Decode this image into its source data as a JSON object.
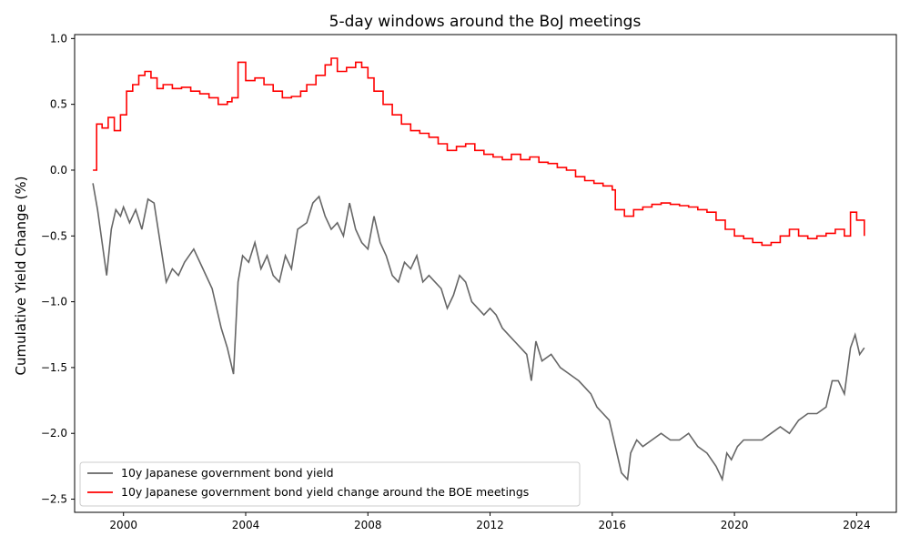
{
  "chart_data": {
    "type": "line",
    "title": "5-day windows around the BoJ meetings",
    "xlabel": "",
    "ylabel": "Cumulative Yield Change (%)",
    "xlim": [
      1998.4,
      2025.3
    ],
    "ylim": [
      -2.6,
      1.03
    ],
    "x_ticks": [
      2000,
      2004,
      2008,
      2012,
      2016,
      2020,
      2024
    ],
    "y_ticks": [
      1.0,
      0.5,
      0.0,
      -0.5,
      -1.0,
      -1.5,
      -2.0,
      -2.5
    ],
    "y_tick_labels": [
      "1.0",
      "0.5",
      "0.0",
      "−0.5",
      "−1.0",
      "−1.5",
      "−2.0",
      "−2.5"
    ],
    "grid": false,
    "legend_position": "lower-left",
    "series": [
      {
        "name": "10y Japanese government bond yield",
        "color": "#666666",
        "style": "line",
        "x": [
          1999.0,
          1999.15,
          1999.3,
          1999.45,
          1999.6,
          1999.75,
          1999.9,
          2000.0,
          2000.2,
          2000.4,
          2000.6,
          2000.8,
          2001.0,
          2001.2,
          2001.4,
          2001.6,
          2001.8,
          2002.0,
          2002.3,
          2002.6,
          2002.9,
          2003.2,
          2003.4,
          2003.6,
          2003.75,
          2003.9,
          2004.1,
          2004.3,
          2004.5,
          2004.7,
          2004.9,
          2005.1,
          2005.3,
          2005.5,
          2005.7,
          2006.0,
          2006.2,
          2006.4,
          2006.6,
          2006.8,
          2007.0,
          2007.2,
          2007.4,
          2007.6,
          2007.8,
          2008.0,
          2008.2,
          2008.4,
          2008.6,
          2008.8,
          2009.0,
          2009.2,
          2009.4,
          2009.6,
          2009.8,
          2010.0,
          2010.2,
          2010.4,
          2010.6,
          2010.8,
          2011.0,
          2011.2,
          2011.4,
          2011.6,
          2011.8,
          2012.0,
          2012.2,
          2012.4,
          2012.6,
          2012.8,
          2013.0,
          2013.2,
          2013.35,
          2013.5,
          2013.7,
          2014.0,
          2014.3,
          2014.6,
          2014.9,
          2015.1,
          2015.3,
          2015.5,
          2015.7,
          2015.9,
          2016.1,
          2016.3,
          2016.5,
          2016.6,
          2016.8,
          2017.0,
          2017.3,
          2017.6,
          2017.9,
          2018.2,
          2018.5,
          2018.8,
          2019.1,
          2019.4,
          2019.6,
          2019.75,
          2019.9,
          2020.1,
          2020.3,
          2020.6,
          2020.9,
          2021.2,
          2021.5,
          2021.8,
          2022.1,
          2022.4,
          2022.7,
          2023.0,
          2023.2,
          2023.4,
          2023.6,
          2023.8,
          2023.95,
          2024.1,
          2024.25
        ],
        "y": [
          -0.1,
          -0.3,
          -0.55,
          -0.8,
          -0.45,
          -0.3,
          -0.35,
          -0.28,
          -0.4,
          -0.3,
          -0.45,
          -0.22,
          -0.25,
          -0.55,
          -0.85,
          -0.75,
          -0.8,
          -0.7,
          -0.6,
          -0.75,
          -0.9,
          -1.2,
          -1.35,
          -1.55,
          -0.85,
          -0.65,
          -0.7,
          -0.55,
          -0.75,
          -0.65,
          -0.8,
          -0.85,
          -0.65,
          -0.75,
          -0.45,
          -0.4,
          -0.25,
          -0.2,
          -0.35,
          -0.45,
          -0.4,
          -0.5,
          -0.25,
          -0.45,
          -0.55,
          -0.6,
          -0.35,
          -0.55,
          -0.65,
          -0.8,
          -0.85,
          -0.7,
          -0.75,
          -0.65,
          -0.85,
          -0.8,
          -0.85,
          -0.9,
          -1.05,
          -0.95,
          -0.8,
          -0.85,
          -1.0,
          -1.05,
          -1.1,
          -1.05,
          -1.1,
          -1.2,
          -1.25,
          -1.3,
          -1.35,
          -1.4,
          -1.6,
          -1.3,
          -1.45,
          -1.4,
          -1.5,
          -1.55,
          -1.6,
          -1.65,
          -1.7,
          -1.8,
          -1.85,
          -1.9,
          -2.1,
          -2.3,
          -2.35,
          -2.15,
          -2.05,
          -2.1,
          -2.05,
          -2.0,
          -2.05,
          -2.05,
          -2.0,
          -2.1,
          -2.15,
          -2.25,
          -2.35,
          -2.15,
          -2.2,
          -2.1,
          -2.05,
          -2.05,
          -2.05,
          -2.0,
          -1.95,
          -2.0,
          -1.9,
          -1.85,
          -1.85,
          -1.8,
          -1.6,
          -1.6,
          -1.7,
          -1.35,
          -1.25,
          -1.4,
          -1.35
        ]
      },
      {
        "name": "10y Japanese government bond yield change around the BOE meetings",
        "color": "#ff0000",
        "style": "step",
        "x": [
          1999.0,
          1999.12,
          1999.3,
          1999.5,
          1999.7,
          1999.9,
          2000.1,
          2000.3,
          2000.5,
          2000.7,
          2000.9,
          2001.1,
          2001.3,
          2001.6,
          2001.9,
          2002.2,
          2002.5,
          2002.8,
          2003.1,
          2003.4,
          2003.55,
          2003.75,
          2004.0,
          2004.3,
          2004.6,
          2004.9,
          2005.2,
          2005.5,
          2005.8,
          2006.0,
          2006.3,
          2006.6,
          2006.8,
          2007.0,
          2007.3,
          2007.6,
          2007.8,
          2008.0,
          2008.2,
          2008.5,
          2008.8,
          2009.1,
          2009.4,
          2009.7,
          2010.0,
          2010.3,
          2010.6,
          2010.9,
          2011.2,
          2011.5,
          2011.8,
          2012.1,
          2012.4,
          2012.7,
          2013.0,
          2013.3,
          2013.6,
          2013.9,
          2014.2,
          2014.5,
          2014.8,
          2015.1,
          2015.4,
          2015.7,
          2016.0,
          2016.1,
          2016.4,
          2016.7,
          2017.0,
          2017.3,
          2017.6,
          2017.9,
          2018.2,
          2018.5,
          2018.8,
          2019.1,
          2019.4,
          2019.7,
          2020.0,
          2020.3,
          2020.6,
          2020.9,
          2021.2,
          2021.5,
          2021.8,
          2022.1,
          2022.4,
          2022.7,
          2023.0,
          2023.3,
          2023.6,
          2023.8,
          2024.0,
          2024.25
        ],
        "y": [
          0.0,
          0.35,
          0.32,
          0.4,
          0.3,
          0.42,
          0.6,
          0.65,
          0.72,
          0.75,
          0.7,
          0.62,
          0.65,
          0.62,
          0.63,
          0.6,
          0.58,
          0.55,
          0.5,
          0.52,
          0.55,
          0.82,
          0.68,
          0.7,
          0.65,
          0.6,
          0.55,
          0.56,
          0.6,
          0.65,
          0.72,
          0.8,
          0.85,
          0.75,
          0.78,
          0.82,
          0.78,
          0.7,
          0.6,
          0.5,
          0.42,
          0.35,
          0.3,
          0.28,
          0.25,
          0.2,
          0.15,
          0.18,
          0.2,
          0.15,
          0.12,
          0.1,
          0.08,
          0.12,
          0.08,
          0.1,
          0.06,
          0.05,
          0.02,
          0.0,
          -0.05,
          -0.08,
          -0.1,
          -0.12,
          -0.15,
          -0.3,
          -0.35,
          -0.3,
          -0.28,
          -0.26,
          -0.25,
          -0.26,
          -0.27,
          -0.28,
          -0.3,
          -0.32,
          -0.38,
          -0.45,
          -0.5,
          -0.52,
          -0.55,
          -0.57,
          -0.55,
          -0.5,
          -0.45,
          -0.5,
          -0.52,
          -0.5,
          -0.48,
          -0.45,
          -0.5,
          -0.32,
          -0.38,
          -0.5
        ]
      }
    ]
  }
}
